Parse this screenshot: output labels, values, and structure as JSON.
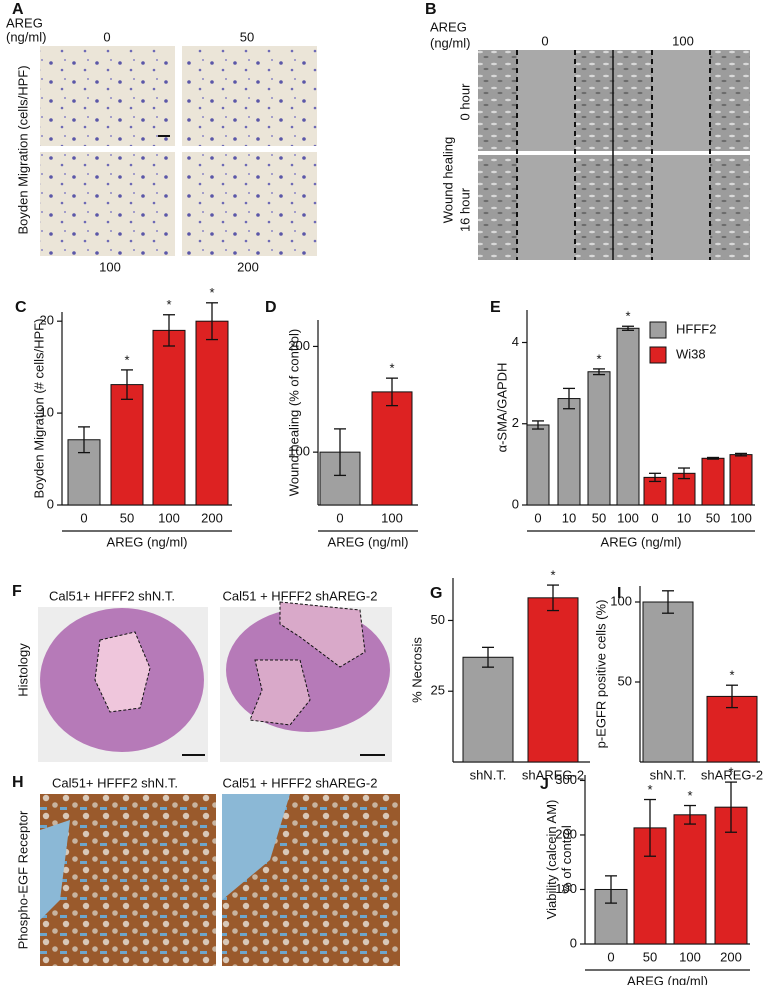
{
  "panels": {
    "A": {
      "label": "A",
      "unit": [
        "AREG",
        "(ng/ml)"
      ],
      "conditions": [
        "0",
        "50",
        "100",
        "200"
      ],
      "ylabel": "Boyden Migration (cells/HPF)"
    },
    "B": {
      "label": "B",
      "unit": [
        "AREG",
        "(ng/ml)"
      ],
      "conditions": [
        "0",
        "100"
      ],
      "ylabel": "Wound healing",
      "times": [
        "0  hour",
        "16  hour"
      ]
    },
    "F": {
      "label": "F",
      "titles": [
        "Cal51+ HFFF2 shN.T.",
        "Cal51 + HFFF2 shAREG-2"
      ],
      "ylabel": "Histology"
    },
    "H": {
      "label": "H",
      "titles": [
        "Cal51+ HFFF2 shN.T.",
        "Cal51 + HFFF2 shAREG-2"
      ],
      "ylabel": "Phospho-EGF Receptor"
    }
  },
  "chart_data": [
    {
      "type": "bar",
      "label": "C",
      "ylabel": [
        "Boyden Migration (# cells/HPF)"
      ],
      "xlabel": "AREG (ng/ml)",
      "categories": [
        "0",
        "50",
        "100",
        "200"
      ],
      "values": [
        7.1,
        13.1,
        19,
        20
      ],
      "errors": [
        1.4,
        1.6,
        1.7,
        2
      ],
      "colors": [
        "#a0a0a0",
        "#dd2222",
        "#dd2222",
        "#dd2222"
      ],
      "annotations": [
        null,
        "*",
        "*",
        "*"
      ],
      "ylim": [
        0,
        21
      ],
      "yticks": [
        0,
        10,
        20
      ]
    },
    {
      "type": "bar",
      "label": "D",
      "ylabel": [
        "Wound healing (% of  control)"
      ],
      "xlabel": "AREG (ng/ml)",
      "categories": [
        "0",
        "100"
      ],
      "values": [
        100,
        157
      ],
      "errors": [
        22,
        13
      ],
      "colors": [
        "#a0a0a0",
        "#dd2222"
      ],
      "annotations": [
        null,
        "*"
      ],
      "ylim": [
        50,
        225
      ],
      "yticks": [
        100,
        200
      ]
    },
    {
      "type": "grouped-bar",
      "label": "E",
      "ylabel": [
        "α-SMA/GAPDH"
      ],
      "xlabel": "AREG (ng/ml)",
      "categories": [
        "0",
        "10",
        "50",
        "100"
      ],
      "legend": "upper right",
      "series": [
        {
          "name": "HFFF2",
          "color": "#a0a0a0",
          "values": [
            1.97,
            2.62,
            3.28,
            4.35
          ],
          "errors": [
            0.1,
            0.25,
            0.07,
            0.05
          ],
          "annotations": [
            null,
            null,
            "*",
            "*"
          ]
        },
        {
          "name": "Wi38",
          "color": "#dd2222",
          "values": [
            0.68,
            0.78,
            1.15,
            1.24
          ],
          "errors": [
            0.1,
            0.13,
            0.02,
            0.03
          ],
          "annotations": [
            null,
            null,
            null,
            null
          ]
        }
      ],
      "ylim": [
        0,
        4.8
      ],
      "yticks": [
        0,
        2,
        4
      ]
    },
    {
      "type": "bar",
      "label": "G",
      "ylabel": [
        "% Necrosis"
      ],
      "categories": [
        "shN.T.",
        "shAREG-2"
      ],
      "values": [
        37,
        58
      ],
      "errors": [
        3.5,
        4.5
      ],
      "colors": [
        "#a0a0a0",
        "#dd2222"
      ],
      "annotations": [
        null,
        "*"
      ],
      "ylim": [
        0,
        65
      ],
      "yticks": [
        25,
        50
      ]
    },
    {
      "type": "bar",
      "label": "I",
      "ylabel": [
        "p-EGFR positive cells (%)"
      ],
      "categories": [
        "shN.T.",
        "shAREG-2"
      ],
      "values": [
        100,
        41
      ],
      "errors": [
        7,
        7
      ],
      "colors": [
        "#a0a0a0",
        "#dd2222"
      ],
      "annotations": [
        null,
        "*"
      ],
      "ylim": [
        0,
        110
      ],
      "yticks": [
        50,
        100
      ]
    },
    {
      "type": "bar",
      "label": "J",
      "ylabel": [
        "Viability (calcein AM)",
        "% of control"
      ],
      "xlabel": "AREG (ng/ml)",
      "categories": [
        "0",
        "50",
        "100",
        "200"
      ],
      "values": [
        100,
        213,
        237,
        251
      ],
      "errors": [
        25,
        52,
        17,
        46
      ],
      "colors": [
        "#a0a0a0",
        "#dd2222",
        "#dd2222",
        "#dd2222"
      ],
      "annotations": [
        null,
        "*",
        "*",
        "*"
      ],
      "ylim": [
        0,
        310
      ],
      "yticks": [
        0,
        100,
        200,
        300
      ]
    }
  ]
}
